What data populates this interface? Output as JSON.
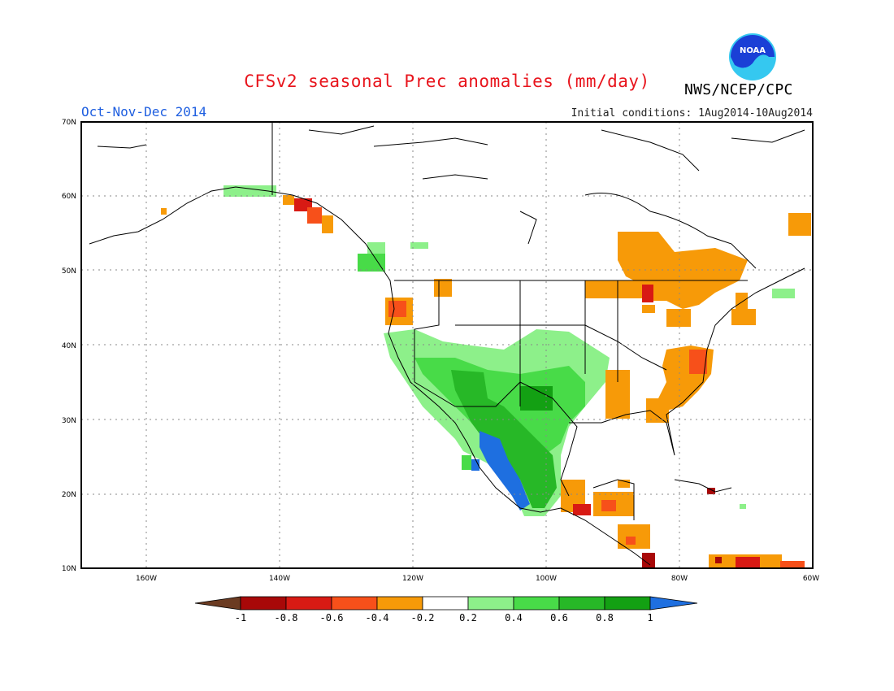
{
  "header": {
    "title": "CFSv2 seasonal Prec anomalies (mm/day)",
    "period": "Oct-Nov-Dec 2014",
    "initial_conditions": "Initial conditions: 1Aug2014-10Aug2014",
    "agency": "NWS/NCEP/CPC",
    "logo_text": "NOAA"
  },
  "colors": {
    "title": "#e8141c",
    "period": "#1f5fe0",
    "logo_blue": "#1a3fd6",
    "logo_cyan": "#35c8f0"
  },
  "map": {
    "lat_ticks": [
      "70N",
      "60N",
      "50N",
      "40N",
      "30N",
      "20N",
      "10N"
    ],
    "lon_ticks": [
      "160W",
      "140W",
      "120W",
      "100W",
      "80W",
      "60W"
    ],
    "grid_lines": "dotted",
    "region": "North America"
  },
  "legend": {
    "labels": [
      "-1",
      "-0.8",
      "-0.6",
      "-0.4",
      "-0.2",
      "0.2",
      "0.4",
      "0.6",
      "0.8",
      "1"
    ],
    "bins": [
      {
        "label": "< -1",
        "color": "#6b3b22"
      },
      {
        "label": "-1 to -0.8",
        "color": "#a80808"
      },
      {
        "label": "-0.8 to -0.6",
        "color": "#d81a14"
      },
      {
        "label": "-0.6 to -0.4",
        "color": "#f7501a"
      },
      {
        "label": "-0.4 to -0.2",
        "color": "#f79a08"
      },
      {
        "label": "-0.2 to 0.2",
        "color": "#ffffff"
      },
      {
        "label": "0.2 to 0.4",
        "color": "#8df08a"
      },
      {
        "label": "0.4 to 0.6",
        "color": "#48db48"
      },
      {
        "label": "0.6 to 0.8",
        "color": "#27b827"
      },
      {
        "label": "0.8 to 1",
        "color": "#13a013"
      },
      {
        "label": "> 1",
        "color": "#1e6fe0"
      }
    ]
  }
}
